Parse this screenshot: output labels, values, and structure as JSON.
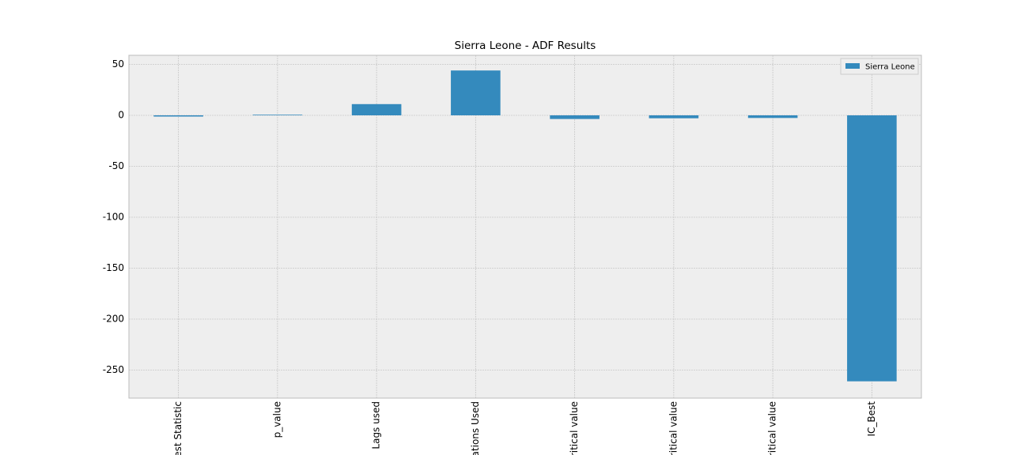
{
  "chart_data": {
    "type": "bar",
    "title": "Sierra Leone - ADF Results",
    "categories": [
      "est Statistic",
      "p_value",
      "Lags used",
      "ations Used",
      "ritical value",
      "ritical value",
      "ritical value",
      "IC_Best"
    ],
    "series": [
      {
        "name": "Sierra Leone",
        "color": "#348ABD",
        "values": [
          -1.2,
          0.6,
          11,
          44,
          -3.6,
          -2.9,
          -2.6,
          -261
        ]
      }
    ],
    "ylim": [
      -277.5,
      58.9
    ],
    "yticks": [
      50,
      0,
      -50,
      -100,
      -150,
      -200,
      -250
    ],
    "grid": true,
    "legend": "upper right"
  }
}
